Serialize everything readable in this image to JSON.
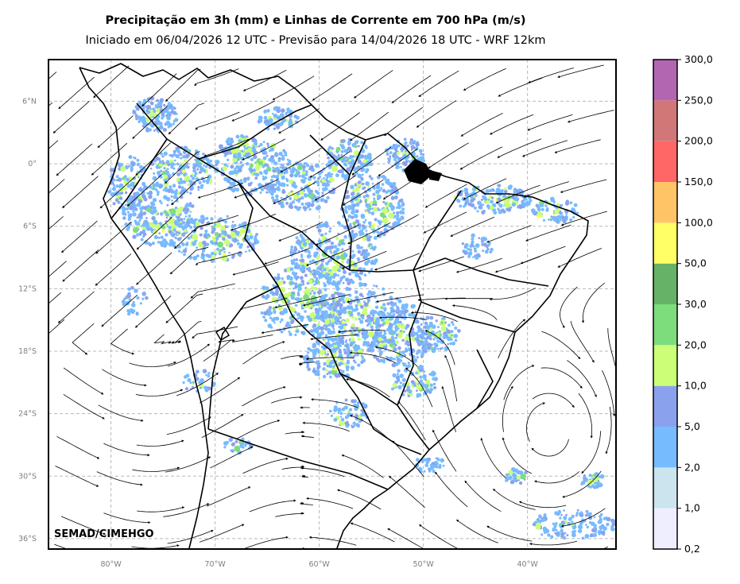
{
  "title": "Precipitação em 3h (mm) e Linhas de Corrente em 700 hPa (m/s)",
  "subtitle": "Iniciado em 06/04/2026 12 UTC - Previsão para 14/04/2026 18 UTC - WRF 12km",
  "credit": "SEMAD/CIMEHGO",
  "map": {
    "lon_range": [
      -86,
      -31.5
    ],
    "lat_range": [
      -37,
      10
    ],
    "lat_ticks": [
      {
        "value": 6,
        "label": "6°N"
      },
      {
        "value": 0,
        "label": "0°"
      },
      {
        "value": -6,
        "label": "6°S"
      },
      {
        "value": -12,
        "label": "12°S"
      },
      {
        "value": -18,
        "label": "18°S"
      },
      {
        "value": -24,
        "label": "24°S"
      },
      {
        "value": -30,
        "label": "30°S"
      },
      {
        "value": -36,
        "label": "36°S"
      }
    ],
    "lon_ticks": [
      {
        "value": -80,
        "label": "80°W"
      },
      {
        "value": -70,
        "label": "70°W"
      },
      {
        "value": -60,
        "label": "60°W"
      },
      {
        "value": -50,
        "label": "50°W"
      },
      {
        "value": -40,
        "label": "40°W"
      }
    ],
    "grid": true
  },
  "colorbar": {
    "labels": [
      "0,2",
      "1,0",
      "2,0",
      "5,0",
      "10,0",
      "20,0",
      "30,0",
      "50,0",
      "100,0",
      "150,0",
      "200,0",
      "250,0",
      "300,0"
    ],
    "colors": [
      "#eeeeff",
      "#cce4ee",
      "#77bbff",
      "#8aa2ee",
      "#ccff77",
      "#7ddd7d",
      "#66b266",
      "#ffff66",
      "#ffc466",
      "#ff6666",
      "#d17777",
      "#b266b2"
    ]
  },
  "precip_colors": {
    "light": "#77bbff",
    "moderate": "#8aa2ee",
    "heavy": "#ccff77",
    "very_heavy": "#7ddd7d",
    "extreme": "#ffff66"
  }
}
